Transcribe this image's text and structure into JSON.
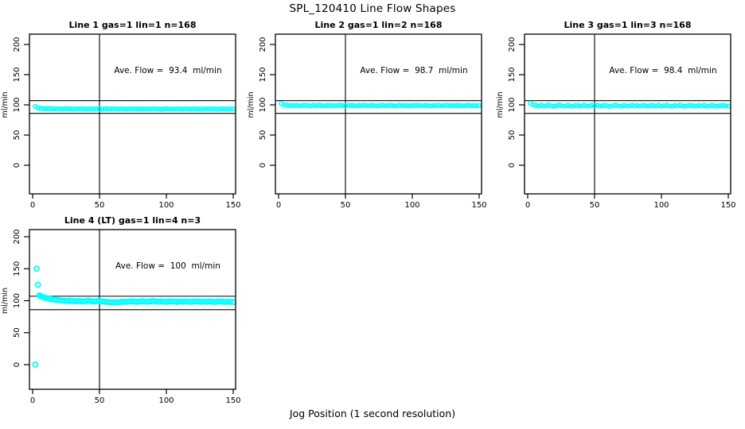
{
  "figure": {
    "title": "SPL_120410  Line Flow Shapes",
    "xlabel": "Jog Position (1 second resolution)",
    "ylabel": "ml/min",
    "point_color": "#00ffff",
    "line_color": "#000000",
    "background": "#ffffff"
  },
  "chart_data": [
    {
      "type": "scatter",
      "title": "Line 1 gas=1 lin=1 n=168",
      "annotation": "Ave. Flow =  93.4  ml/min",
      "ave_flow_ml_min": 93.4,
      "n": 168,
      "ylabel": "ml/min",
      "xlim": [
        0,
        150
      ],
      "ylim": [
        0,
        200
      ],
      "x_ticks": [
        0,
        50,
        100,
        150
      ],
      "y_ticks": [
        0,
        50,
        100,
        150,
        200
      ],
      "reference_lines": {
        "h_upper": 107,
        "h_lower": 86,
        "v_x": 50
      },
      "x_start": 2,
      "x_step": 2,
      "y": [
        97.3,
        94.9,
        94.1,
        93.8,
        93.5,
        93.9,
        93.3,
        93.6,
        93.1,
        93.4,
        92.9,
        93.3,
        93.6,
        93.0,
        93.4,
        92.8,
        93.2,
        93.5,
        93.0,
        92.7,
        93.1,
        93.4,
        92.9,
        93.3,
        93.0,
        92.6,
        93.2,
        93.5,
        92.9,
        93.1,
        93.4,
        92.8,
        93.0,
        93.3,
        92.7,
        93.1,
        92.9,
        93.4,
        93.0,
        92.6,
        93.2,
        92.9,
        93.3,
        92.8,
        93.1,
        93.4,
        92.9,
        92.6,
        93.0,
        93.3,
        92.8,
        93.2,
        92.9,
        93.4,
        93.0,
        92.7,
        93.1,
        93.3,
        92.8,
        93.0,
        93.4,
        92.9,
        92.6,
        93.2,
        92.8,
        93.1,
        93.3,
        92.9,
        92.6,
        93.0,
        93.2,
        92.8,
        93.1,
        92.9,
        93.0
      ]
    },
    {
      "type": "scatter",
      "title": "Line 2 gas=1 lin=2 n=168",
      "annotation": "Ave. Flow =  98.7  ml/min",
      "ave_flow_ml_min": 98.7,
      "n": 168,
      "ylabel": "ml/min",
      "xlim": [
        0,
        150
      ],
      "ylim": [
        0,
        200
      ],
      "x_ticks": [
        0,
        50,
        100,
        150
      ],
      "y_ticks": [
        0,
        50,
        100,
        150,
        200
      ],
      "reference_lines": {
        "h_upper": 107,
        "h_lower": 86,
        "v_x": 50
      },
      "x_start": 2,
      "x_step": 2,
      "y": [
        102.3,
        99.9,
        99.2,
        98.8,
        99.1,
        98.6,
        99.0,
        98.4,
        98.9,
        99.3,
        98.7,
        98.3,
        99.0,
        98.6,
        99.2,
        98.8,
        98.4,
        99.1,
        98.7,
        99.0,
        98.5,
        98.9,
        99.2,
        98.6,
        98.3,
        98.8,
        99.1,
        98.7,
        98.4,
        99.0,
        98.6,
        99.2,
        98.8,
        98.5,
        99.1,
        98.7,
        98.3,
        98.9,
        99.2,
        98.6,
        98.8,
        99.0,
        98.5,
        98.2,
        98.9,
        99.1,
        98.6,
        98.8,
        98.4,
        99.0,
        98.7,
        99.2,
        98.5,
        98.8,
        99.1,
        98.6,
        98.3,
        98.9,
        98.7,
        99.0,
        98.5,
        98.8,
        99.2,
        98.6,
        98.9,
        98.4,
        99.0,
        98.7,
        98.3,
        98.8,
        99.1,
        98.6,
        98.9,
        98.5,
        98.7
      ]
    },
    {
      "type": "scatter",
      "title": "Line 3 gas=1 lin=3 n=168",
      "annotation": "Ave. Flow =  98.4  ml/min",
      "ave_flow_ml_min": 98.4,
      "n": 168,
      "ylabel": "ml/min",
      "xlim": [
        0,
        150
      ],
      "ylim": [
        0,
        200
      ],
      "x_ticks": [
        0,
        50,
        100,
        150
      ],
      "y_ticks": [
        0,
        50,
        100,
        150,
        200
      ],
      "reference_lines": {
        "h_upper": 107,
        "h_lower": 86,
        "v_x": 50
      },
      "x_start": 2,
      "x_step": 2,
      "y": [
        102.8,
        100.2,
        99.0,
        98.2,
        99.3,
        97.9,
        98.8,
        99.5,
        98.1,
        97.7,
        98.9,
        99.4,
        98.3,
        97.8,
        99.1,
        98.5,
        97.6,
        99.2,
        98.7,
        98.0,
        99.4,
        98.2,
        97.8,
        99.0,
        98.6,
        99.3,
        97.9,
        98.4,
        99.1,
        98.0,
        97.6,
        98.8,
        99.3,
        98.2,
        97.9,
        99.0,
        98.5,
        97.7,
        99.2,
        98.3,
        98.8,
        97.9,
        99.1,
        98.4,
        97.8,
        99.0,
        98.6,
        98.1,
        99.3,
        97.9,
        98.5,
        99.1,
        98.0,
        97.7,
        98.9,
        98.4,
        99.2,
        98.0,
        97.8,
        98.7,
        99.1,
        98.3,
        97.9,
        98.8,
        98.2,
        99.0,
        97.8,
        98.5,
        99.2,
        98.1,
        97.9,
        98.6,
        99.0,
        98.3,
        98.0
      ]
    },
    {
      "type": "scatter",
      "title": "Line 4 (LT) gas=1 lin=4 n=3",
      "annotation": "Ave. Flow =  100  ml/min",
      "ave_flow_ml_min": 100,
      "n": 3,
      "ylabel": "ml/min",
      "xlim": [
        0,
        150
      ],
      "ylim": [
        0,
        200
      ],
      "x_ticks": [
        0,
        50,
        100,
        150
      ],
      "y_ticks": [
        0,
        50,
        100,
        150,
        200
      ],
      "reference_lines": {
        "h_upper": 107,
        "h_lower": 86,
        "v_x": 50
      },
      "points": [
        [
          2,
          0
        ],
        [
          3,
          150
        ],
        [
          4,
          125
        ],
        [
          5,
          108
        ],
        [
          6,
          107
        ],
        [
          7,
          106.2
        ],
        [
          8,
          105.4
        ],
        [
          9,
          104.7
        ],
        [
          10,
          104.1
        ],
        [
          12,
          103.2
        ],
        [
          14,
          102.4
        ],
        [
          16,
          101.7
        ],
        [
          18,
          101.1
        ],
        [
          20,
          100.6
        ],
        [
          22,
          100.2
        ],
        [
          24,
          99.8
        ],
        [
          26,
          99.5
        ],
        [
          28,
          99.9
        ],
        [
          30,
          99.4
        ],
        [
          32,
          99.0
        ],
        [
          34,
          99.6
        ],
        [
          36,
          99.2
        ],
        [
          38,
          98.8
        ],
        [
          40,
          99.3
        ],
        [
          42,
          99.8
        ],
        [
          44,
          99.1
        ],
        [
          46,
          98.7
        ],
        [
          48,
          99.2
        ],
        [
          50,
          99.6
        ],
        [
          52,
          98.9
        ],
        [
          54,
          98.4
        ],
        [
          56,
          98.0
        ],
        [
          58,
          97.6
        ],
        [
          60,
          97.3
        ],
        [
          62,
          97.8
        ],
        [
          64,
          97.4
        ],
        [
          66,
          98.0
        ],
        [
          68,
          98.5
        ],
        [
          70,
          98.1
        ],
        [
          72,
          98.7
        ],
        [
          74,
          99.1
        ],
        [
          76,
          98.6
        ],
        [
          78,
          98.2
        ],
        [
          80,
          98.8
        ],
        [
          82,
          99.2
        ],
        [
          84,
          98.7
        ],
        [
          86,
          98.3
        ],
        [
          88,
          98.9
        ],
        [
          90,
          99.3
        ],
        [
          92,
          98.8
        ],
        [
          94,
          98.4
        ],
        [
          96,
          99.0
        ],
        [
          98,
          98.5
        ],
        [
          100,
          98.1
        ],
        [
          102,
          98.7
        ],
        [
          104,
          99.1
        ],
        [
          106,
          98.6
        ],
        [
          108,
          98.2
        ],
        [
          110,
          98.8
        ],
        [
          112,
          98.4
        ],
        [
          114,
          98.9
        ],
        [
          116,
          98.5
        ],
        [
          118,
          98.1
        ],
        [
          120,
          98.6
        ],
        [
          122,
          99.0
        ],
        [
          124,
          98.5
        ],
        [
          126,
          98.1
        ],
        [
          128,
          98.7
        ],
        [
          130,
          98.3
        ],
        [
          132,
          98.8
        ],
        [
          134,
          98.4
        ],
        [
          136,
          98.0
        ],
        [
          138,
          98.5
        ],
        [
          140,
          98.9
        ],
        [
          142,
          98.4
        ],
        [
          144,
          98.0
        ],
        [
          146,
          98.5
        ],
        [
          148,
          98.1
        ],
        [
          150,
          97.8
        ]
      ]
    }
  ]
}
